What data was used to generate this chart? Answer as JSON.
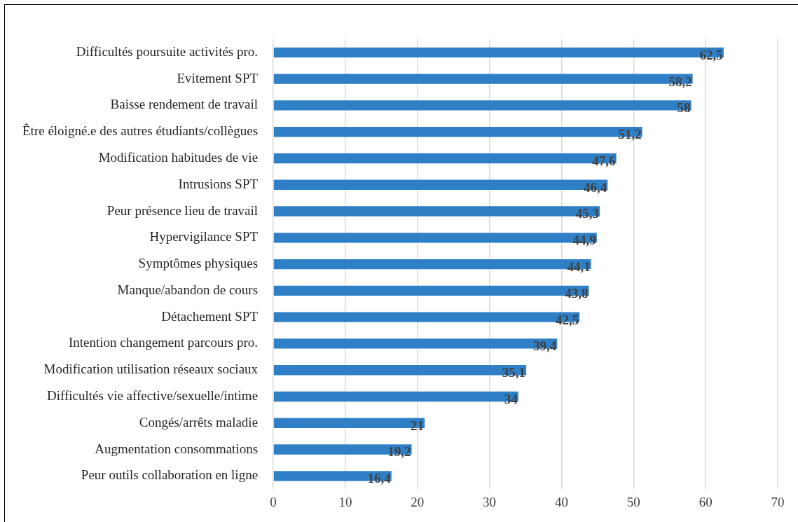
{
  "chart_data": {
    "type": "bar",
    "orientation": "horizontal",
    "categories": [
      "Difficultés poursuite activités pro.",
      "Evitement SPT",
      "Baisse rendement de travail",
      "Être éloigné.e des autres étudiants/collègues",
      "Modification habitudes de vie",
      "Intrusions SPT",
      "Peur présence lieu de travail",
      "Hypervigilance SPT",
      "Symptômes physiques",
      "Manque/abandon de cours",
      "Détachement SPT",
      "Intention changement parcours pro.",
      "Modification utilisation réseaux sociaux",
      "Difficultés vie affective/sexuelle/intime",
      "Congés/arrêts maladie",
      "Augmentation consommations",
      "Peur outils collaboration en ligne"
    ],
    "values": [
      62.5,
      58.2,
      58,
      51.2,
      47.6,
      46.4,
      45.3,
      44.9,
      44.1,
      43.8,
      42.5,
      39.4,
      35.1,
      34,
      21,
      19.2,
      16.4
    ],
    "value_labels": [
      "62,5",
      "58,2",
      "58",
      "51,2",
      "47,6",
      "46,4",
      "45,3",
      "44,9",
      "44,1",
      "43,8",
      "42,5",
      "39,4",
      "35,1",
      "34",
      "21",
      "19,2",
      "16,4"
    ],
    "color": "#2f7fc6",
    "xlim": [
      0,
      70
    ],
    "xticks": [
      0,
      10,
      20,
      30,
      40,
      50,
      60,
      70
    ],
    "grid": "x",
    "legend": false
  }
}
